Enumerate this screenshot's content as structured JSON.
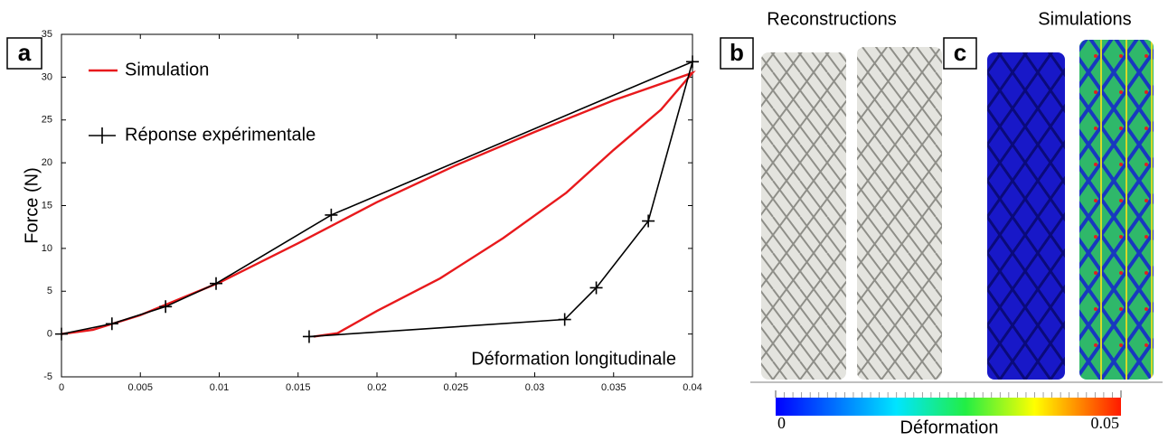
{
  "chart_data": {
    "type": "line",
    "panel_label": "a",
    "ylabel": "Force (N)",
    "xlabel": "Déformation longitudinale",
    "xlim": [
      0,
      0.04
    ],
    "xticks": [
      0,
      0.005,
      0.01,
      0.015,
      0.02,
      0.025,
      0.03,
      0.035,
      0.04
    ],
    "ylim": [
      -5,
      35
    ],
    "yticks": [
      -5,
      0,
      5,
      10,
      15,
      20,
      25,
      30,
      35
    ],
    "series": [
      {
        "name": "Simulation",
        "color": "#e8191c",
        "marker": null,
        "x": [
          0,
          0.002,
          0.005,
          0.01,
          0.015,
          0.02,
          0.025,
          0.03,
          0.035,
          0.04,
          0.038,
          0.035,
          0.032,
          0.028,
          0.024,
          0.02,
          0.0175,
          0.016
        ],
        "values": [
          0,
          0.5,
          2.2,
          6,
          10.6,
          15.4,
          19.7,
          23.6,
          27.3,
          30.5,
          26.2,
          21.5,
          16.5,
          11.2,
          6.5,
          2.7,
          0.1,
          -0.3
        ]
      },
      {
        "name": "Réponse expérimentale",
        "color": "#000000",
        "marker": "+",
        "x": [
          0,
          0.0032,
          0.0066,
          0.0098,
          0.0171,
          0.04,
          0.0372,
          0.0339,
          0.0319,
          0.0157
        ],
        "values": [
          0,
          1.2,
          3.2,
          5.9,
          13.9,
          31.8,
          13.2,
          5.4,
          1.7,
          -0.3
        ]
      }
    ]
  },
  "panels": {
    "b": {
      "label": "b",
      "title": "Reconstructions"
    },
    "c": {
      "label": "c",
      "title": "Simulations"
    }
  },
  "colorbar": {
    "label": "Déformation",
    "lim": [
      0,
      0.05
    ],
    "ticks": [
      0,
      0.05
    ]
  }
}
